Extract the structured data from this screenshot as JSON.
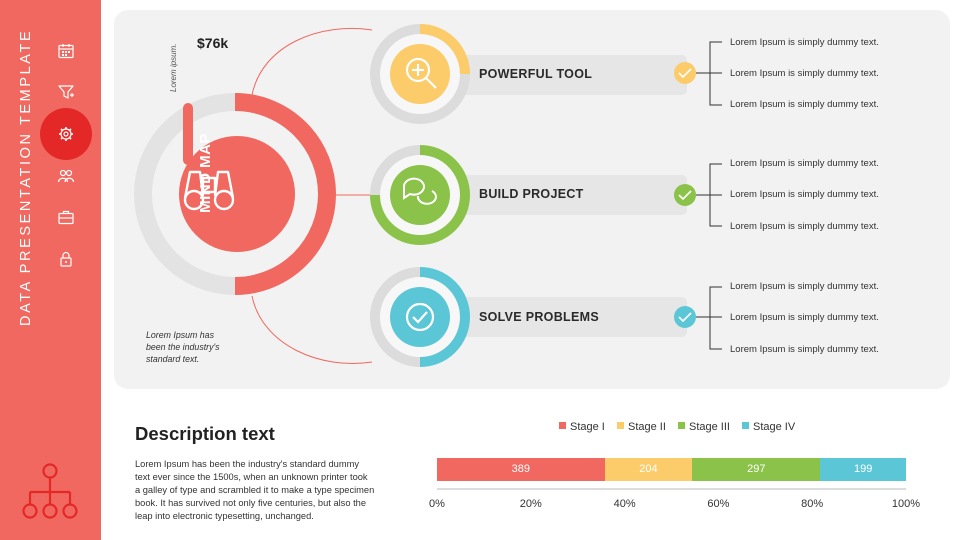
{
  "sidebar": {
    "title": "DATA PRESENTATION TEMPLATE",
    "icons": [
      "calendar-icon",
      "funnel-icon",
      "gear-icon",
      "people-icon",
      "briefcase-icon",
      "lock-icon",
      "org-chart-icon"
    ],
    "active_icon": "gear-icon"
  },
  "mindmap": {
    "amount": "$76k",
    "side_label": "Lorem ipsum.",
    "center_label": "MIND MAP",
    "center_icon": "binoculars-icon",
    "caption": [
      "Lorem Ipsum has",
      "been the industry's",
      "standard text."
    ],
    "ring_progress": 0.5
  },
  "branches": [
    {
      "label": "POWERFUL TOOL",
      "icon": "zoom-in-icon",
      "color": "#fccb6a",
      "progress": 0.25,
      "items": [
        "Lorem Ipsum is simply dummy text.",
        "Lorem Ipsum is simply dummy text.",
        "Lorem Ipsum is simply dummy text."
      ]
    },
    {
      "label": "BUILD PROJECT",
      "icon": "chat-icon",
      "color": "#8bc34a",
      "progress": 0.75,
      "items": [
        "Lorem Ipsum is simply dummy text.",
        "Lorem Ipsum is simply dummy text.",
        "Lorem Ipsum is simply dummy text."
      ]
    },
    {
      "label": "SOLVE PROBLEMS",
      "icon": "checkmark-icon",
      "color": "#5bc7d6",
      "progress": 0.5,
      "items": [
        "Lorem Ipsum is simply dummy text.",
        "Lorem Ipsum is simply dummy text.",
        "Lorem Ipsum is simply dummy text."
      ]
    }
  ],
  "description": {
    "title": "Description text",
    "lines": [
      "Lorem Ipsum has been the industry's standard dummy",
      "text ever since the 1500s, when an unknown printer took",
      "a galley of type and scrambled it to make a type specimen",
      "book. It has survived not only five centuries, but also the",
      "leap into electronic typesetting, unchanged."
    ]
  },
  "chart_data": {
    "type": "bar",
    "orientation": "horizontal-stacked",
    "series": [
      {
        "name": "Stage I",
        "value": 389,
        "color": "#f0685f"
      },
      {
        "name": "Stage II",
        "value": 204,
        "color": "#fccb6a"
      },
      {
        "name": "Stage III",
        "value": 297,
        "color": "#8bc34a"
      },
      {
        "name": "Stage IV",
        "value": 199,
        "color": "#5bc7d6"
      }
    ],
    "xticks": [
      "0%",
      "20%",
      "40%",
      "60%",
      "80%",
      "100%"
    ],
    "xlim": [
      0,
      100
    ],
    "legend": "top"
  }
}
